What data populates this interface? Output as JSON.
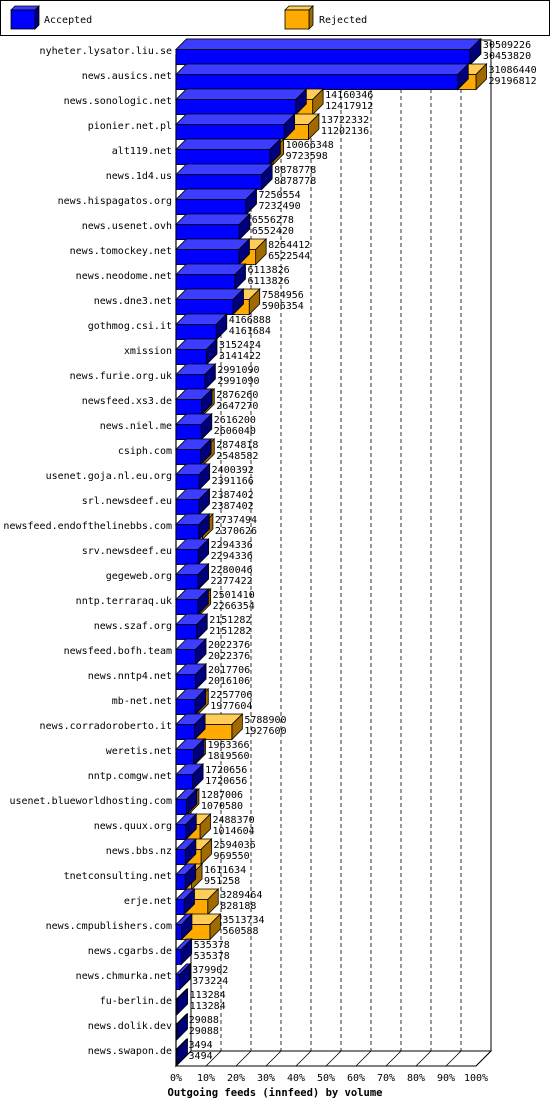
{
  "chart_data": {
    "type": "bar",
    "orientation": "horizontal",
    "stacked_overlay": true,
    "title": "",
    "xlabel": "Outgoing feeds (innfeed) by volume",
    "ylabel": "",
    "xlim": [
      0,
      100
    ],
    "x_ticks": [
      "0%",
      "10%",
      "20%",
      "30%",
      "40%",
      "50%",
      "60%",
      "70%",
      "80%",
      "90%",
      "100%"
    ],
    "grid": "vertical-dashed",
    "legend_position": "top",
    "colors": {
      "accepted": "#0000ff",
      "accepted_dark": "#00007a",
      "accepted_top": "#3d3dff",
      "rejected": "#ffaa00",
      "rejected_dark": "#a06a00",
      "rejected_top": "#ffcc55",
      "frame": "#000000"
    },
    "series": [
      {
        "name": "Accepted",
        "color": "#0000ff"
      },
      {
        "name": "Rejected",
        "color": "#ffaa00"
      }
    ],
    "categories": [
      "nyheter.lysator.liu.se",
      "news.ausics.net",
      "news.sonologic.net",
      "pionier.net.pl",
      "alt119.net",
      "news.1d4.us",
      "news.hispagatos.org",
      "news.usenet.ovh",
      "news.tomockey.net",
      "news.neodome.net",
      "news.dne3.net",
      "gothmog.csi.it",
      "xmission",
      "news.furie.org.uk",
      "newsfeed.xs3.de",
      "news.niel.me",
      "csiph.com",
      "usenet.goja.nl.eu.org",
      "srl.newsdeef.eu",
      "newsfeed.endofthelinebbs.com",
      "srv.newsdeef.eu",
      "gegeweb.org",
      "nntp.terraraq.uk",
      "news.szaf.org",
      "newsfeed.bofh.team",
      "news.nntp4.net",
      "mb-net.net",
      "news.corradoroberto.it",
      "weretis.net",
      "nntp.comgw.net",
      "usenet.blueworldhosting.com",
      "news.quux.org",
      "news.bbs.nz",
      "tnetconsulting.net",
      "erje.net",
      "news.cmpublishers.com",
      "news.cgarbs.de",
      "news.chmurka.net",
      "fu-berlin.de",
      "news.dolik.dev",
      "news.swapon.de"
    ],
    "offered": [
      "30509226",
      "31086440",
      "14160346",
      "13722332",
      "10066348",
      "8878778",
      "7250554",
      "6556278",
      "8254412",
      "6113826",
      "7584956",
      "4166888",
      "3152424",
      "2991090",
      "2876260",
      "2616200",
      "2874818",
      "2400392",
      "2387402",
      "2737494",
      "2294336",
      "2280046",
      "2501410",
      "2151282",
      "2022376",
      "2017706",
      "2257706",
      "5788900",
      "1963366",
      "1720656",
      "1287006",
      "2488370",
      "2594036",
      "1611634",
      "3289464",
      "3513734",
      "535378",
      "379902",
      "113284",
      "29088",
      "3494"
    ],
    "accepted": [
      "30453820",
      "29196812",
      "12417912",
      "11202136",
      "9723598",
      "8878778",
      "7232490",
      "6552420",
      "6522544",
      "6113826",
      "5906354",
      "4161684",
      "3141422",
      "2991090",
      "2647270",
      "2606040",
      "2548582",
      "2391166",
      "2387402",
      "2370626",
      "2294336",
      "2277422",
      "2266354",
      "2151282",
      "2022376",
      "2016106",
      "1977604",
      "1927600",
      "1819560",
      "1720656",
      "1070580",
      "1014604",
      "969550",
      "951258",
      "828188",
      "560588",
      "535378",
      "373224",
      "113284",
      "29088",
      "3494"
    ]
  }
}
